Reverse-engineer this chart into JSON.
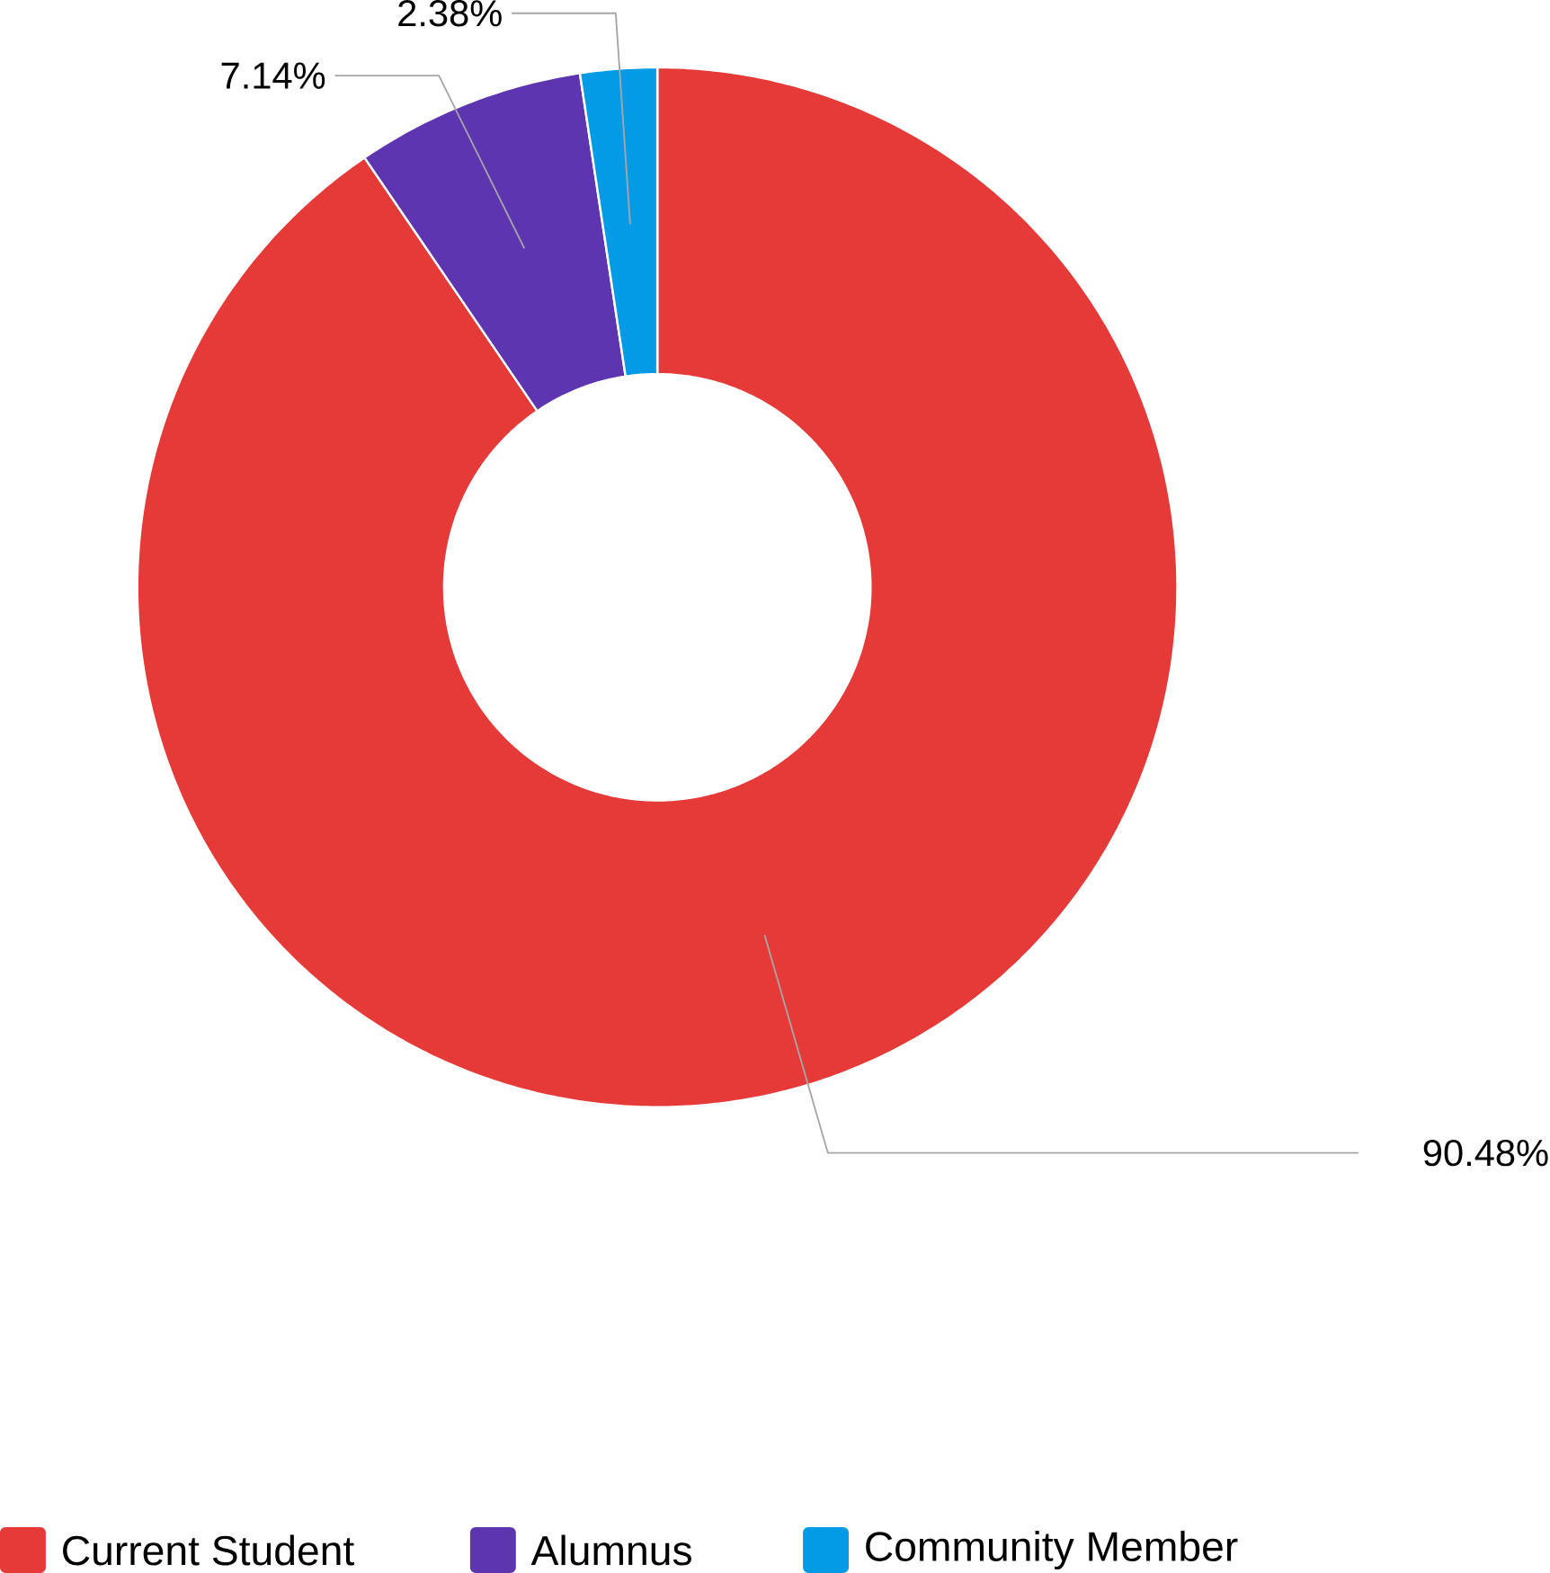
{
  "chart_data": {
    "type": "donut",
    "categories": [
      "Current Student",
      "Alumnus",
      "Community Member"
    ],
    "values": [
      90.48,
      7.14,
      2.38
    ],
    "colors": [
      "#e53a37",
      "#5e35b1",
      "#039be5"
    ],
    "value_labels": [
      "90.48%",
      "7.14%",
      "2.38%"
    ],
    "legend": "bottom"
  }
}
